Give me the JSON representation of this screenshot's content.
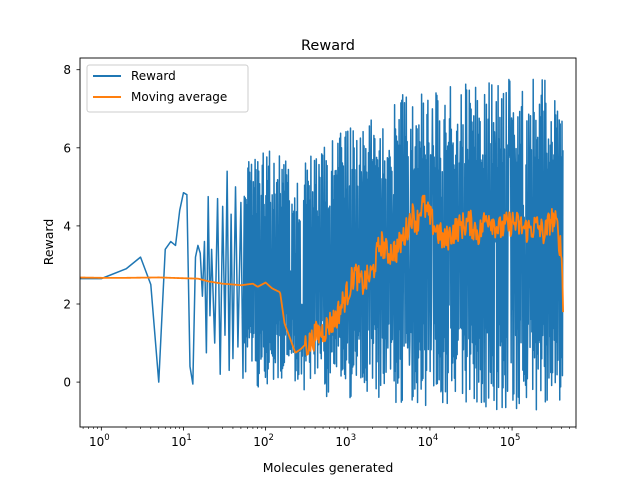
{
  "chart_data": {
    "type": "line",
    "title": "Reward",
    "xlabel": "Molecules generated",
    "ylabel": "Reward",
    "xscale": "log",
    "xlim": [
      0.55,
      600000
    ],
    "ylim": [
      -1.15,
      8.3
    ],
    "grid": false,
    "legend_position": "top-left",
    "x_ticks": [
      {
        "value": 1,
        "base": "10",
        "exp": "0"
      },
      {
        "value": 10,
        "base": "10",
        "exp": "1"
      },
      {
        "value": 100,
        "base": "10",
        "exp": "2"
      },
      {
        "value": 1000,
        "base": "10",
        "exp": "3"
      },
      {
        "value": 10000,
        "base": "10",
        "exp": "4"
      },
      {
        "value": 100000,
        "base": "10",
        "exp": "5"
      }
    ],
    "y_ticks": [
      0,
      2,
      4,
      6,
      8
    ],
    "series": [
      {
        "name": "Reward",
        "color": "#1f77b4",
        "points": [
          [
            0.5,
            2.65
          ],
          [
            1,
            2.65
          ],
          [
            2,
            2.9
          ],
          [
            3,
            3.2
          ],
          [
            4,
            2.5
          ],
          [
            5,
            0.0
          ],
          [
            5.5,
            1.8
          ],
          [
            6,
            3.4
          ],
          [
            7,
            3.6
          ],
          [
            8,
            3.5
          ],
          [
            9,
            4.4
          ],
          [
            10,
            4.85
          ],
          [
            11,
            4.8
          ],
          [
            12,
            0.4
          ],
          [
            13,
            -0.05
          ],
          [
            14,
            3.2
          ],
          [
            15,
            3.5
          ],
          [
            16,
            3.3
          ],
          [
            17,
            2.2
          ],
          [
            18,
            3.6
          ],
          [
            19,
            0.75
          ],
          [
            20,
            4.75
          ],
          [
            21,
            1.7
          ],
          [
            22,
            3.4
          ],
          [
            24,
            1.0
          ],
          [
            26,
            4.7
          ],
          [
            28,
            0.2
          ],
          [
            30,
            4.5
          ],
          [
            32,
            1.2
          ],
          [
            34,
            5.4
          ],
          [
            36,
            0.3
          ],
          [
            38,
            4.3
          ],
          [
            40,
            0.6
          ],
          [
            43,
            5.0
          ],
          [
            46,
            0.9
          ],
          [
            50,
            4.6
          ],
          [
            53,
            0.1
          ]
        ],
        "envelope": {
          "x": [
            55,
            100,
            150,
            200,
            250,
            300,
            500,
            700,
            1000,
            1500,
            2000,
            3000,
            5000,
            10000,
            20000,
            50000,
            100000,
            200000,
            300000,
            420000
          ],
          "upper": [
            5.8,
            5.9,
            6.0,
            6.2,
            5.3,
            5.8,
            6.0,
            6.3,
            6.5,
            6.7,
            7.0,
            7.3,
            7.4,
            7.5,
            7.6,
            7.7,
            7.8,
            7.85,
            7.7,
            7.4
          ],
          "lower": [
            0.0,
            -0.2,
            -0.1,
            0.2,
            -0.3,
            -0.4,
            -0.4,
            -0.4,
            -0.4,
            -0.45,
            -0.5,
            -0.55,
            -0.6,
            -0.65,
            -0.7,
            -0.7,
            -0.75,
            -0.75,
            -0.7,
            -0.6
          ]
        }
      },
      {
        "name": "Moving average",
        "color": "#ff7f0e",
        "points": [
          [
            0.5,
            2.68
          ],
          [
            1,
            2.67
          ],
          [
            2,
            2.67
          ],
          [
            5,
            2.68
          ],
          [
            10,
            2.66
          ],
          [
            15,
            2.65
          ],
          [
            20,
            2.58
          ],
          [
            30,
            2.52
          ],
          [
            40,
            2.5
          ],
          [
            50,
            2.48
          ],
          [
            70,
            2.52
          ],
          [
            80,
            2.44
          ],
          [
            100,
            2.55
          ],
          [
            120,
            2.4
          ],
          [
            150,
            2.3
          ],
          [
            170,
            1.5
          ],
          [
            200,
            1.1
          ],
          [
            230,
            0.75
          ],
          [
            270,
            0.85
          ],
          [
            300,
            0.95
          ],
          [
            350,
            1.0
          ],
          [
            400,
            1.2
          ],
          [
            500,
            1.3
          ],
          [
            600,
            1.5
          ],
          [
            700,
            1.6
          ],
          [
            900,
            2.1
          ],
          [
            1000,
            2.3
          ],
          [
            1200,
            2.8
          ],
          [
            1500,
            2.5
          ],
          [
            2000,
            2.8
          ],
          [
            2500,
            3.6
          ],
          [
            3000,
            3.3
          ],
          [
            4000,
            3.4
          ],
          [
            5000,
            3.8
          ],
          [
            6000,
            4.3
          ],
          [
            7000,
            4.1
          ],
          [
            8000,
            4.6
          ],
          [
            10000,
            4.2
          ],
          [
            12000,
            3.9
          ],
          [
            15000,
            3.6
          ],
          [
            20000,
            3.9
          ],
          [
            30000,
            4.1
          ],
          [
            40000,
            3.8
          ],
          [
            50000,
            4.3
          ],
          [
            70000,
            3.9
          ],
          [
            100000,
            4.1
          ],
          [
            150000,
            3.9
          ],
          [
            200000,
            4.0
          ],
          [
            250000,
            3.8
          ],
          [
            300000,
            4.2
          ],
          [
            350000,
            4.0
          ],
          [
            400000,
            3.3
          ],
          [
            420000,
            2.0
          ]
        ],
        "noise": 0.35
      }
    ]
  }
}
